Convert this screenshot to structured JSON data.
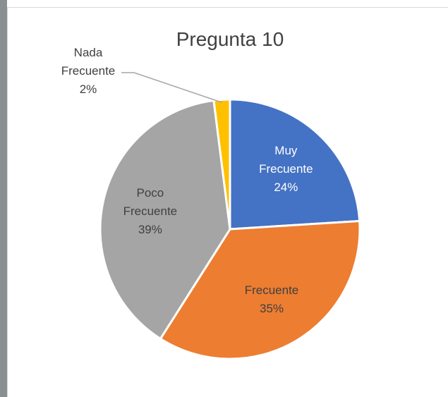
{
  "chart_data": {
    "type": "pie",
    "title": "Pregunta 10",
    "categories": [
      "Muy Frecuente",
      "Frecuente",
      "Poco Frecuente",
      "Nada Frecuente"
    ],
    "values": [
      24,
      35,
      39,
      2
    ],
    "value_labels": [
      "24%",
      "35%",
      "39%",
      "2%"
    ],
    "colors": [
      "#4472c4",
      "#ed7d31",
      "#a5a5a5",
      "#ffc000"
    ]
  }
}
